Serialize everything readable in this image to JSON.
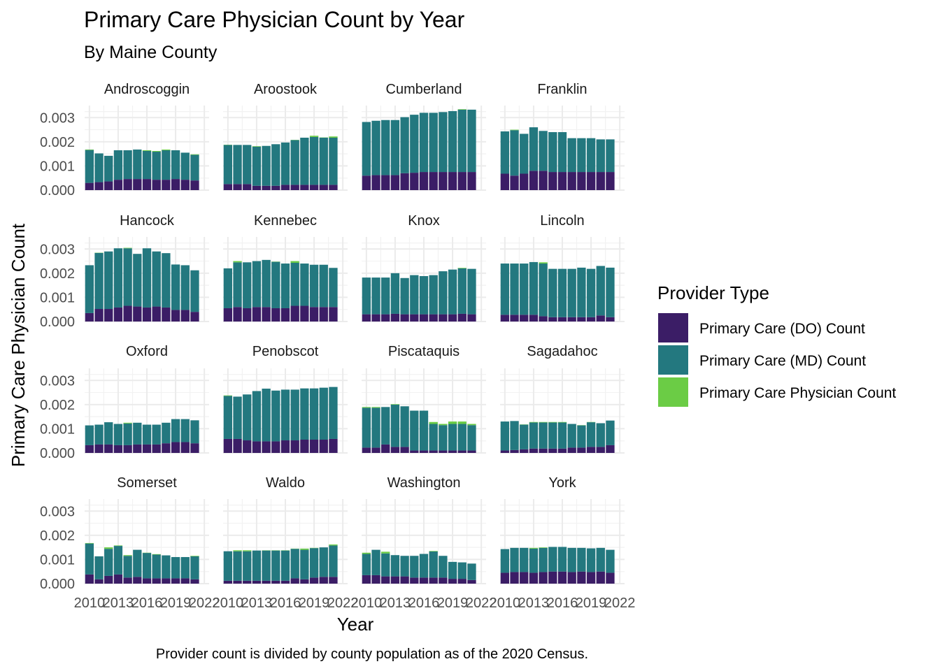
{
  "chart_data": {
    "type": "bar",
    "stacked": true,
    "faceted": true,
    "title": "Primary Care Physician Count by Year",
    "subtitle": "By Maine County",
    "xlabel": "Year",
    "ylabel": "Primary Care Physician Count",
    "caption": "Provider count is divided by county population as of the 2020 Census.",
    "x_ticks": [
      "2010",
      "2013",
      "2016",
      "2019",
      "2022"
    ],
    "y_ticks": [
      "0.000",
      "0.001",
      "0.002",
      "0.003"
    ],
    "ylim": [
      0,
      0.0035
    ],
    "xlim": [
      2009.5,
      2022.5
    ],
    "grid": true,
    "legend": {
      "title": "Provider Type",
      "position": "right",
      "entries": [
        {
          "label": "Primary Care (DO) Count",
          "color": "#3b1d66"
        },
        {
          "label": "Primary Care (MD) Count",
          "color": "#23787f"
        },
        {
          "label": "Primary Care Physician Count",
          "color": "#6bcc45"
        }
      ]
    },
    "years": [
      2010,
      2011,
      2012,
      2013,
      2014,
      2015,
      2016,
      2017,
      2018,
      2019,
      2020,
      2021
    ],
    "series_names": [
      "Primary Care (DO) Count",
      "Primary Care (MD) Count",
      "Primary Care Physician Count"
    ],
    "facets": [
      {
        "name": "Androscoggin",
        "do": [
          0.0003,
          0.00033,
          0.00036,
          0.00043,
          0.00046,
          0.00046,
          0.00046,
          0.00043,
          0.00043,
          0.00046,
          0.00043,
          0.0004
        ],
        "md": [
          0.00136,
          0.00119,
          0.00106,
          0.00122,
          0.00119,
          0.00122,
          0.00116,
          0.00116,
          0.00122,
          0.00119,
          0.00112,
          0.00106
        ],
        "total": [
          0.00168,
          0.00152,
          0.00142,
          0.00165,
          0.00162,
          0.00168,
          0.00165,
          0.00162,
          0.00168,
          0.00165,
          0.00155,
          0.00148
        ]
      },
      {
        "name": "Aroostook",
        "do": [
          0.00025,
          0.00025,
          0.00025,
          0.00018,
          0.00018,
          0.00018,
          0.00022,
          0.00022,
          0.00022,
          0.00022,
          0.00022,
          0.00022
        ],
        "md": [
          0.00162,
          0.00162,
          0.00162,
          0.00162,
          0.00165,
          0.00172,
          0.00175,
          0.00185,
          0.00195,
          0.00198,
          0.00195,
          0.00195
        ],
        "total": [
          0.00188,
          0.00182,
          0.00182,
          0.00182,
          0.00175,
          0.00188,
          0.00188,
          0.00208,
          0.00215,
          0.00225,
          0.00218,
          0.00222
        ]
      },
      {
        "name": "Cumberland",
        "do": [
          0.0006,
          0.00062,
          0.00062,
          0.00062,
          0.0007,
          0.00072,
          0.00075,
          0.00075,
          0.00075,
          0.00075,
          0.00075,
          0.00075
        ],
        "md": [
          0.00222,
          0.00225,
          0.00228,
          0.00228,
          0.00232,
          0.0024,
          0.00245,
          0.00245,
          0.00248,
          0.00252,
          0.00258,
          0.00258
        ],
        "total": [
          0.00282,
          0.00285,
          0.0029,
          0.0029,
          0.003,
          0.00308,
          0.00315,
          0.00315,
          0.00318,
          0.0032,
          0.00335,
          0.00332
        ]
      },
      {
        "name": "Franklin",
        "do": [
          0.00068,
          0.0006,
          0.00068,
          0.0008,
          0.0008,
          0.00075,
          0.00075,
          0.00075,
          0.00075,
          0.00075,
          0.00075,
          0.00075
        ],
        "md": [
          0.00175,
          0.00188,
          0.00165,
          0.0018,
          0.00165,
          0.00165,
          0.00165,
          0.0014,
          0.0014,
          0.0014,
          0.00135,
          0.00135
        ],
        "total": [
          0.0024,
          0.0025,
          0.0023,
          0.00258,
          0.0024,
          0.00235,
          0.00235,
          0.00215,
          0.00215,
          0.00215,
          0.0021,
          0.0021
        ]
      },
      {
        "name": "Hancock",
        "do": [
          0.00035,
          0.00052,
          0.00052,
          0.00058,
          0.00065,
          0.00062,
          0.00058,
          0.00062,
          0.00058,
          0.00048,
          0.00048,
          0.0004
        ],
        "md": [
          0.00198,
          0.00232,
          0.00238,
          0.00245,
          0.00238,
          0.00218,
          0.00245,
          0.00228,
          0.00225,
          0.00188,
          0.00185,
          0.00172
        ],
        "total": [
          0.00232,
          0.00285,
          0.00288,
          0.00302,
          0.00305,
          0.00275,
          0.003,
          0.00288,
          0.00278,
          0.00232,
          0.00232,
          0.00212
        ]
      },
      {
        "name": "Kennebec",
        "do": [
          0.00055,
          0.0006,
          0.00055,
          0.0006,
          0.0006,
          0.00055,
          0.00055,
          0.00065,
          0.00065,
          0.0006,
          0.0006,
          0.0006
        ],
        "md": [
          0.00165,
          0.00185,
          0.0019,
          0.0019,
          0.00195,
          0.00192,
          0.00185,
          0.00178,
          0.00175,
          0.00175,
          0.00175,
          0.00162
        ],
        "total": [
          0.0022,
          0.0025,
          0.00245,
          0.00245,
          0.00252,
          0.00248,
          0.0024,
          0.0025,
          0.00238,
          0.00235,
          0.00232,
          0.00222
        ]
      },
      {
        "name": "Knox",
        "do": [
          0.0003,
          0.0003,
          0.0003,
          0.00032,
          0.0003,
          0.0003,
          0.0003,
          0.0003,
          0.0003,
          0.0003,
          0.00032,
          0.0003
        ],
        "md": [
          0.00152,
          0.00152,
          0.00152,
          0.00168,
          0.0015,
          0.00162,
          0.00158,
          0.00162,
          0.00178,
          0.00185,
          0.00188,
          0.00188
        ],
        "total": [
          0.00178,
          0.00178,
          0.00178,
          0.00192,
          0.00168,
          0.00182,
          0.00185,
          0.00182,
          0.0019,
          0.00208,
          0.00222,
          0.00215
        ]
      },
      {
        "name": "Lincoln",
        "do": [
          0.00028,
          0.00028,
          0.00028,
          0.00028,
          0.00022,
          0.00018,
          0.00018,
          0.00018,
          0.00018,
          0.00018,
          0.00025,
          0.00018
        ],
        "md": [
          0.00212,
          0.00212,
          0.00212,
          0.00218,
          0.00218,
          0.002,
          0.002,
          0.002,
          0.00205,
          0.002,
          0.00205,
          0.00205
        ],
        "total": [
          0.0024,
          0.0024,
          0.0024,
          0.00245,
          0.00245,
          0.00218,
          0.00218,
          0.00218,
          0.00222,
          0.00218,
          0.00228,
          0.00222
        ]
      },
      {
        "name": "Oxford",
        "do": [
          0.00032,
          0.00035,
          0.00035,
          0.00032,
          0.00032,
          0.00035,
          0.00035,
          0.00035,
          0.0004,
          0.00045,
          0.00045,
          0.0004
        ],
        "md": [
          0.00082,
          0.00082,
          0.00092,
          0.00088,
          0.0009,
          0.0009,
          0.00082,
          0.00082,
          0.00085,
          0.00095,
          0.00095,
          0.00095
        ],
        "total": [
          0.00112,
          0.00115,
          0.00125,
          0.00118,
          0.00125,
          0.00125,
          0.00115,
          0.00115,
          0.00122,
          0.0013,
          0.0014,
          0.00132
        ]
      },
      {
        "name": "Penobscot",
        "do": [
          0.00058,
          0.00058,
          0.00052,
          0.00048,
          0.00048,
          0.00048,
          0.00052,
          0.00052,
          0.00055,
          0.00055,
          0.00055,
          0.00058
        ],
        "md": [
          0.00178,
          0.00175,
          0.0019,
          0.00208,
          0.00218,
          0.0021,
          0.0021,
          0.0021,
          0.00212,
          0.00212,
          0.00215,
          0.00215
        ],
        "total": [
          0.00238,
          0.00232,
          0.00238,
          0.00255,
          0.00265,
          0.00255,
          0.00258,
          0.00258,
          0.00258,
          0.0026,
          0.00268,
          0.00272
        ]
      },
      {
        "name": "Piscataquis",
        "do": [
          0.00022,
          0.00022,
          0.00035,
          0.00025,
          0.00025,
          0.0001,
          0.0001,
          0.0001,
          0.0001,
          0.0001,
          0.0001,
          0.0001
        ],
        "md": [
          0.00165,
          0.00165,
          0.00155,
          0.00175,
          0.00168,
          0.00165,
          0.00165,
          0.0011,
          0.00105,
          0.0011,
          0.0011,
          0.00105
        ],
        "total": [
          0.0019,
          0.0019,
          0.0019,
          0.00202,
          0.0019,
          0.0017,
          0.0017,
          0.00128,
          0.0012,
          0.0013,
          0.0013,
          0.0012
        ]
      },
      {
        "name": "Sagadahoc",
        "do": [
          0.0001,
          0.00012,
          0.00015,
          0.00018,
          0.00018,
          0.00018,
          0.00018,
          0.00022,
          0.00022,
          0.00025,
          0.00025,
          0.00032
        ],
        "md": [
          0.0012,
          0.0012,
          0.00102,
          0.00108,
          0.00108,
          0.00108,
          0.00108,
          0.00098,
          0.00092,
          0.00102,
          0.00098,
          0.00102
        ],
        "total": [
          0.00128,
          0.00128,
          0.00118,
          0.00128,
          0.00128,
          0.00128,
          0.00128,
          0.0012,
          0.00115,
          0.00128,
          0.00122,
          0.00128
        ]
      },
      {
        "name": "Somerset",
        "do": [
          0.00038,
          0.00018,
          0.00032,
          0.00038,
          0.00025,
          0.00028,
          0.00022,
          0.00022,
          0.00022,
          0.00022,
          0.00022,
          0.00018
        ],
        "md": [
          0.00128,
          0.00095,
          0.00112,
          0.00118,
          0.0009,
          0.00112,
          0.00105,
          0.00098,
          0.00095,
          0.00088,
          0.00088,
          0.00095
        ],
        "total": [
          0.00168,
          0.00108,
          0.0015,
          0.00158,
          0.00118,
          0.0014,
          0.00128,
          0.00122,
          0.00108,
          0.00105,
          0.00108,
          0.00115
        ]
      },
      {
        "name": "Waldo",
        "do": [
          0.00012,
          0.00012,
          0.00012,
          0.00012,
          0.00012,
          0.00012,
          0.00012,
          0.00022,
          0.00018,
          0.00025,
          0.00028,
          0.00028
        ],
        "md": [
          0.00122,
          0.00122,
          0.00122,
          0.00125,
          0.00125,
          0.00125,
          0.00125,
          0.00122,
          0.00122,
          0.00122,
          0.00122,
          0.0013
        ],
        "total": [
          0.00132,
          0.00138,
          0.00138,
          0.00132,
          0.00138,
          0.00138,
          0.00138,
          0.00145,
          0.00145,
          0.00148,
          0.00148,
          0.00162
        ]
      },
      {
        "name": "Washington",
        "do": [
          0.00035,
          0.00035,
          0.0003,
          0.0003,
          0.0003,
          0.00025,
          0.00025,
          0.00025,
          0.00025,
          0.0002,
          0.0002,
          0.00015
        ],
        "md": [
          0.00088,
          0.00105,
          0.00095,
          0.00088,
          0.00085,
          0.0009,
          0.00098,
          0.00108,
          0.0009,
          0.0007,
          0.00068,
          0.00068
        ],
        "total": [
          0.00128,
          0.0014,
          0.00132,
          0.00118,
          0.00112,
          0.00112,
          0.00118,
          0.00135,
          0.00108,
          0.0009,
          0.00085,
          0.00082
        ]
      },
      {
        "name": "York",
        "do": [
          0.00045,
          0.00048,
          0.00048,
          0.00045,
          0.00048,
          0.0005,
          0.0005,
          0.00048,
          0.0005,
          0.00048,
          0.0005,
          0.00045
        ],
        "md": [
          0.00098,
          0.001,
          0.001,
          0.001,
          0.001,
          0.00102,
          0.00102,
          0.001,
          0.00098,
          0.00098,
          0.00098,
          0.00095
        ],
        "total": [
          0.00142,
          0.00148,
          0.00148,
          0.00148,
          0.0015,
          0.0015,
          0.00152,
          0.00148,
          0.00145,
          0.00142,
          0.00142,
          0.00135
        ]
      }
    ]
  }
}
